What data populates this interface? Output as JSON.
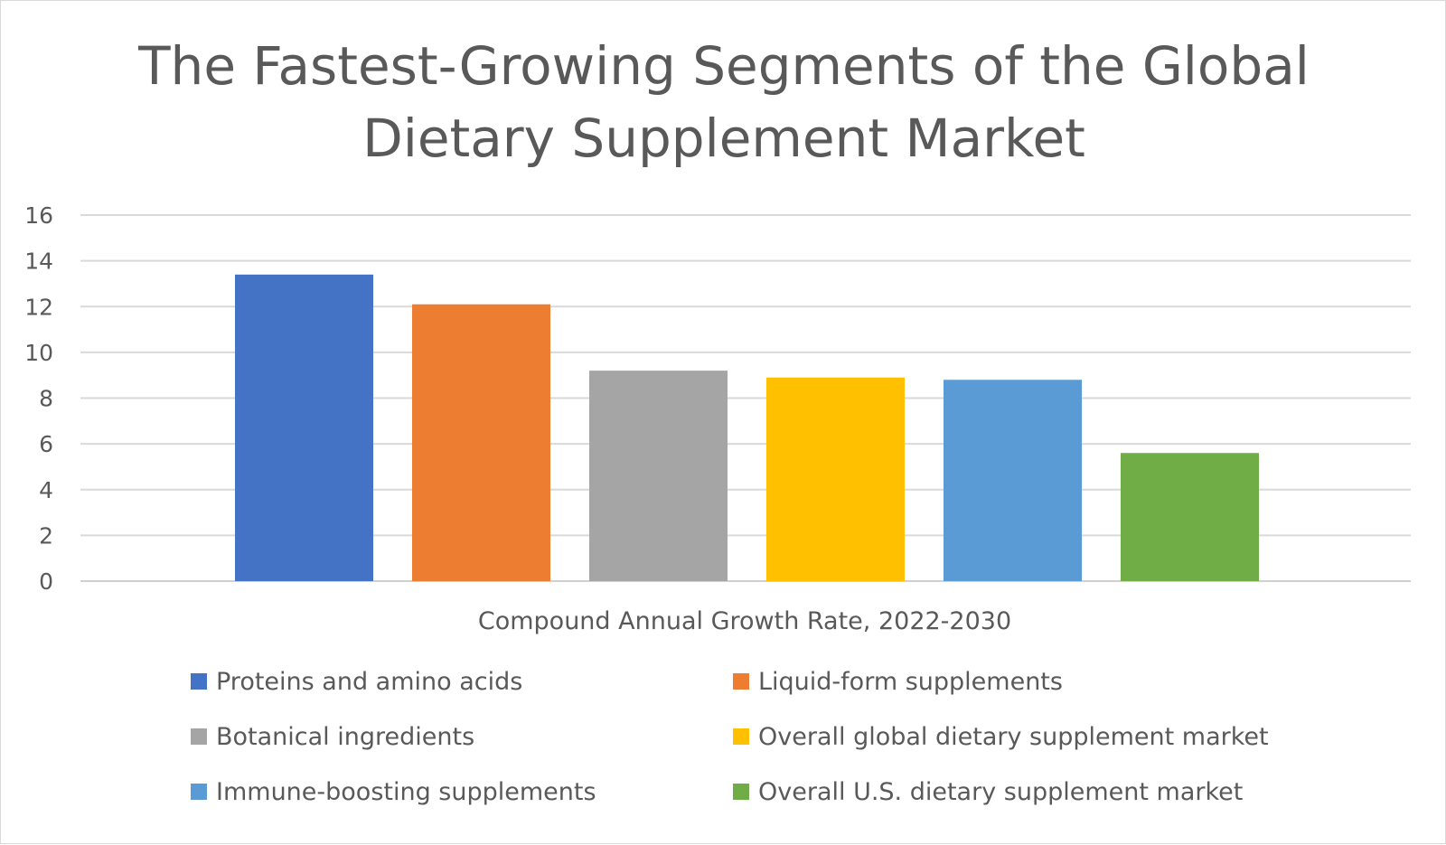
{
  "chart_data": {
    "type": "bar",
    "title": "The Fastest-Growing Segments of the Global Dietary Supplement Market",
    "title_lines": [
      "The Fastest-Growing Segments of the Global",
      "Dietary Supplement Market"
    ],
    "xlabel": "Compound Annual Growth Rate, 2022-2030",
    "ylabel": "",
    "ylim": [
      0,
      16
    ],
    "yticks": [
      "0",
      "2",
      "4",
      "6",
      "8",
      "10",
      "12",
      "14",
      "16"
    ],
    "grid": true,
    "legend_position": "bottom",
    "categories": [
      "Compound Annual Growth Rate, 2022-2030"
    ],
    "series": [
      {
        "name": "Proteins and amino acids",
        "values": [
          13.4
        ],
        "color": "#4472c4"
      },
      {
        "name": "Liquid-form supplements",
        "values": [
          12.1
        ],
        "color": "#ed7d31"
      },
      {
        "name": "Botanical ingredients",
        "values": [
          9.2
        ],
        "color": "#a5a5a5"
      },
      {
        "name": "Overall global dietary supplement market",
        "values": [
          8.9
        ],
        "color": "#ffc000"
      },
      {
        "name": "Immune-boosting supplements",
        "values": [
          8.8
        ],
        "color": "#5b9bd5"
      },
      {
        "name": "Overall U.S. dietary supplement market",
        "values": [
          5.6
        ],
        "color": "#70ad47"
      }
    ]
  }
}
